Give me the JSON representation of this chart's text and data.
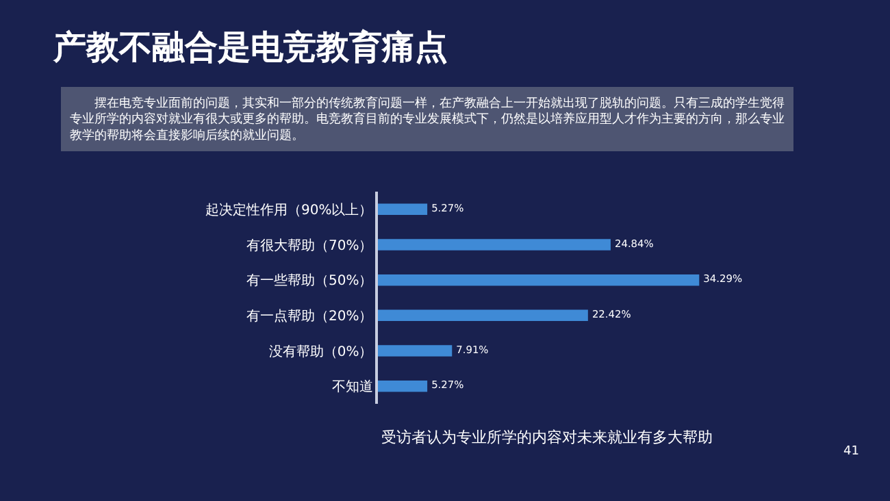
{
  "chart_data": {
    "type": "bar",
    "orientation": "horizontal",
    "title": "产教不融合是电竞教育痛点",
    "subtitle": "　　摆在电竞专业面前的问题，其实和一部分的传统教育问题一样，在产教融合上一开始就出现了脱轨的问题。只有三成的学生觉得专业所学的内容对就业有很大或更多的帮助。电竞教育目前的专业发展模式下，仍然是以培养应用型人才作为主要的方向，那么专业教学的帮助将会直接影响后续的就业问题。",
    "xlabel": "受访者认为专业所学的内容对未来就业有多大帮助",
    "categories": [
      "起决定性作用（90%以上）",
      "有很大帮助（70%）",
      "有一些帮助（50%）",
      "有一点帮助（20%）",
      "没有帮助（0%）",
      "不知道"
    ],
    "values": [
      5.27,
      24.84,
      34.29,
      22.42,
      7.91,
      5.27
    ],
    "value_labels": [
      "5.27%",
      "24.84%",
      "34.29%",
      "22.42%",
      "7.91%",
      "5.27%"
    ],
    "color": "#3f8ad6",
    "tick_labels": "y",
    "grid": false,
    "legend": false,
    "annotations": [
      "41"
    ]
  }
}
